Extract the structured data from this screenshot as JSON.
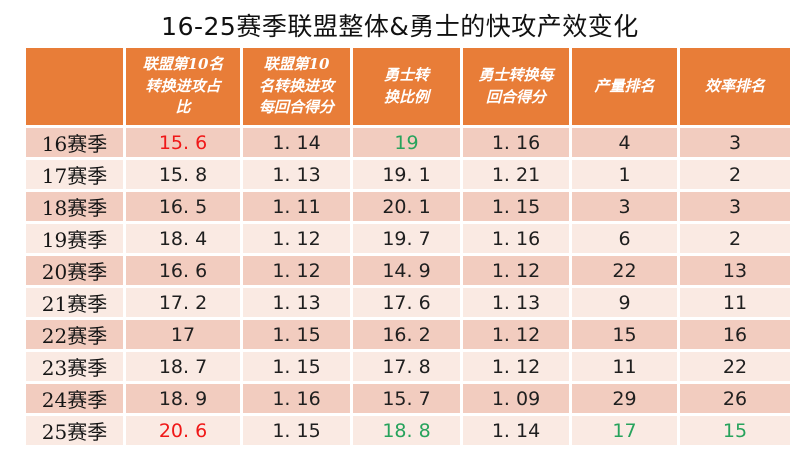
{
  "title": "16-25赛季联盟整体&勇士的快攻产效变化",
  "table": {
    "columns": [
      "",
      "联盟第10名转换进攻占比",
      "联盟第10名转换进攻每回合得分",
      "勇士转换比例",
      "勇士转换每回合得分",
      "产量排名",
      "效率排名"
    ],
    "rows": [
      {
        "label": "16赛季",
        "values": [
          "15.6",
          "1.14",
          "19",
          "1.16",
          "4",
          "3"
        ],
        "value_colors": [
          "red",
          "default",
          "green",
          "default",
          "default",
          "default"
        ]
      },
      {
        "label": "17赛季",
        "values": [
          "15.8",
          "1.13",
          "19.1",
          "1.21",
          "1",
          "2"
        ],
        "value_colors": [
          "default",
          "default",
          "default",
          "default",
          "default",
          "default"
        ]
      },
      {
        "label": "18赛季",
        "values": [
          "16.5",
          "1.11",
          "20.1",
          "1.15",
          "3",
          "3"
        ],
        "value_colors": [
          "default",
          "default",
          "default",
          "default",
          "default",
          "default"
        ]
      },
      {
        "label": "19赛季",
        "values": [
          "18.4",
          "1.12",
          "19.7",
          "1.16",
          "6",
          "2"
        ],
        "value_colors": [
          "default",
          "default",
          "default",
          "default",
          "default",
          "default"
        ]
      },
      {
        "label": "20赛季",
        "values": [
          "16.6",
          "1.12",
          "14.9",
          "1.12",
          "22",
          "13"
        ],
        "value_colors": [
          "default",
          "default",
          "default",
          "default",
          "default",
          "default"
        ]
      },
      {
        "label": "21赛季",
        "values": [
          "17.2",
          "1.13",
          "17.6",
          "1.13",
          "9",
          "11"
        ],
        "value_colors": [
          "default",
          "default",
          "default",
          "default",
          "default",
          "default"
        ]
      },
      {
        "label": "22赛季",
        "values": [
          "17",
          "1.15",
          "16.2",
          "1.12",
          "15",
          "16"
        ],
        "value_colors": [
          "default",
          "default",
          "default",
          "default",
          "default",
          "default"
        ]
      },
      {
        "label": "23赛季",
        "values": [
          "18.7",
          "1.15",
          "17.8",
          "1.12",
          "11",
          "22"
        ],
        "value_colors": [
          "default",
          "default",
          "default",
          "default",
          "default",
          "default"
        ]
      },
      {
        "label": "24赛季",
        "values": [
          "18.9",
          "1.16",
          "15.7",
          "1.09",
          "29",
          "26"
        ],
        "value_colors": [
          "default",
          "default",
          "default",
          "default",
          "default",
          "default"
        ]
      },
      {
        "label": "25赛季",
        "values": [
          "20.6",
          "1.15",
          "18.8",
          "1.14",
          "17",
          "15"
        ],
        "value_colors": [
          "red",
          "default",
          "green",
          "default",
          "green",
          "green"
        ]
      }
    ]
  },
  "colors": {
    "title_text": "#111111",
    "header_bg": "#E87D38",
    "header_text": "#FFFFFF",
    "row_band_dark": "#F2CCBF",
    "row_band_light": "#FAEAE3",
    "value_default": "#1F1F1F",
    "red": "#F01818",
    "green": "#27A35C"
  }
}
